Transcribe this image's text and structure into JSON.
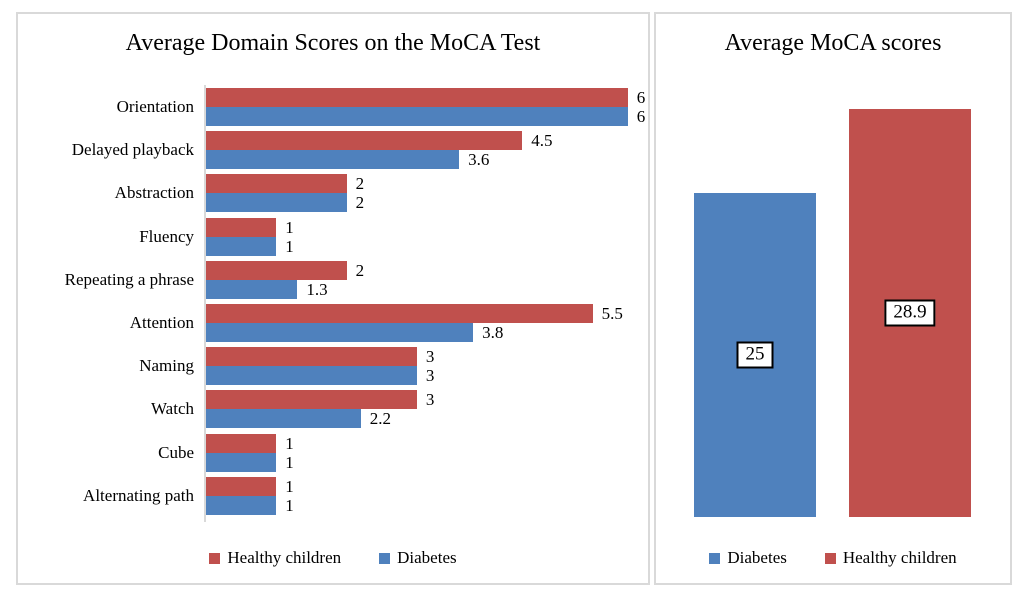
{
  "chart_data": [
    {
      "id": "domain-scores",
      "type": "bar",
      "orientation": "horizontal",
      "title": "Average Domain Scores on the MoCA Test",
      "categories": [
        "Orientation",
        "Delayed playback",
        "Abstraction",
        "Fluency",
        "Repeating a phrase",
        "Attention",
        "Naming",
        "Watch",
        "Cube",
        "Alternating path"
      ],
      "series": [
        {
          "name": "Healthy children",
          "color": "#C0504D",
          "values": [
            6,
            4.5,
            2,
            1,
            2,
            5.5,
            3,
            3,
            1,
            1
          ]
        },
        {
          "name": "Diabetes",
          "color": "#4F81BD",
          "values": [
            6,
            3.6,
            2,
            1,
            1.3,
            3.8,
            3,
            2.2,
            1,
            1
          ]
        }
      ],
      "xlim": [
        0,
        6
      ],
      "data_labels": true,
      "grid": false,
      "legend_position": "bottom",
      "legend": [
        {
          "label": "Healthy children",
          "color": "#C0504D"
        },
        {
          "label": "Diabetes",
          "color": "#4F81BD"
        }
      ]
    },
    {
      "id": "average-scores",
      "type": "bar",
      "orientation": "vertical",
      "title": "Average MoCA scores",
      "categories": [
        "Diabetes",
        "Healthy children"
      ],
      "bars": [
        {
          "label": "Diabetes",
          "value": 25,
          "color": "#4F81BD",
          "data_label": "25"
        },
        {
          "label": "Healthy children",
          "value": 28.9,
          "color": "#C0504D",
          "data_label": "28.9"
        }
      ],
      "ylim": [
        10,
        30
      ],
      "data_labels": true,
      "data_label_style": "boxed-centered",
      "grid": false,
      "legend_position": "bottom",
      "legend": [
        {
          "label": "Diabetes",
          "color": "#4F81BD"
        },
        {
          "label": "Healthy children",
          "color": "#C0504D"
        }
      ]
    }
  ]
}
